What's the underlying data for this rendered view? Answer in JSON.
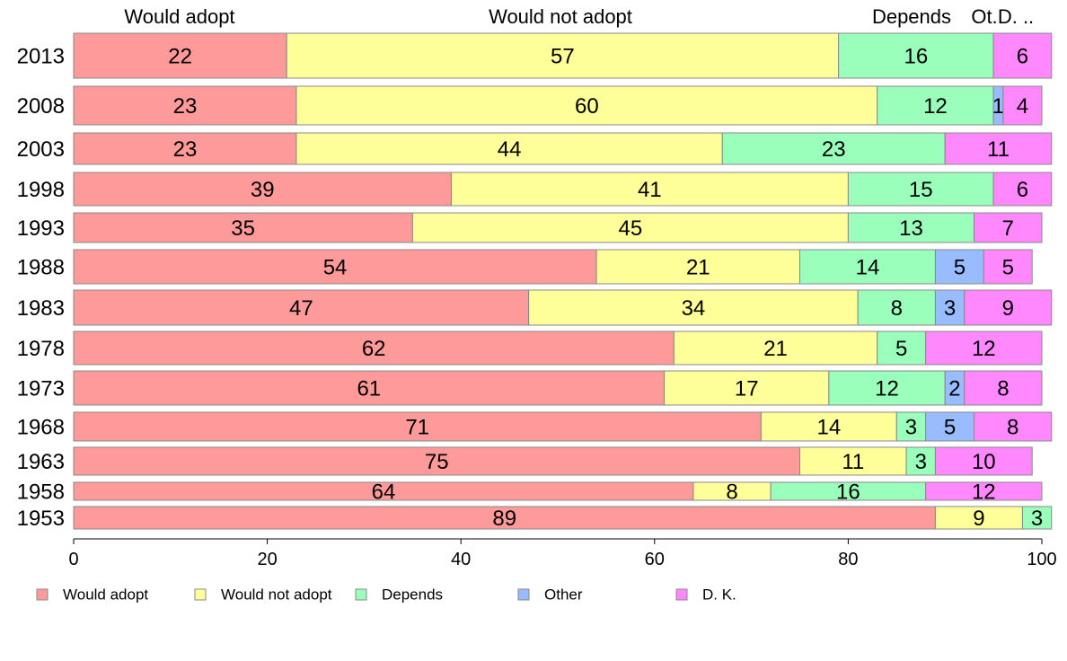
{
  "chart_data": {
    "type": "bar",
    "orientation": "horizontal",
    "stacked": true,
    "categories": [
      "2013",
      "2008",
      "2003",
      "1998",
      "1993",
      "1988",
      "1983",
      "1978",
      "1973",
      "1968",
      "1963",
      "1958",
      "1953"
    ],
    "series": [
      {
        "name": "Would adopt",
        "color": "#ff9a9a",
        "values": [
          22,
          23,
          23,
          39,
          35,
          54,
          47,
          62,
          61,
          71,
          75,
          64,
          89
        ]
      },
      {
        "name": "Would not adopt",
        "color": "#ffff99",
        "values": [
          57,
          60,
          44,
          41,
          45,
          21,
          34,
          21,
          17,
          14,
          11,
          8,
          9
        ]
      },
      {
        "name": "Depends",
        "color": "#99ffbb",
        "values": [
          16,
          12,
          23,
          15,
          13,
          14,
          8,
          5,
          12,
          3,
          3,
          16,
          3
        ]
      },
      {
        "name": "Other",
        "color": "#99bbff",
        "values": [
          0,
          1,
          0,
          0,
          0,
          5,
          3,
          0,
          2,
          5,
          0,
          0,
          0
        ]
      },
      {
        "name": "D. K.",
        "color": "#ff88ff",
        "values": [
          6,
          4,
          11,
          6,
          7,
          5,
          9,
          12,
          8,
          8,
          10,
          12,
          0
        ]
      }
    ],
    "xlim": [
      0,
      100
    ],
    "xticks": [
      "0",
      "20",
      "40",
      "60",
      "80",
      "100"
    ],
    "top_labels": [
      "Would adopt",
      "Would not adopt",
      "Depends",
      "Ot.",
      "D. .."
    ],
    "legend": [
      "Would adopt",
      "Would not adopt",
      "Depends",
      "Other",
      "D. K."
    ],
    "legend_position": "bottom",
    "grid": false
  }
}
